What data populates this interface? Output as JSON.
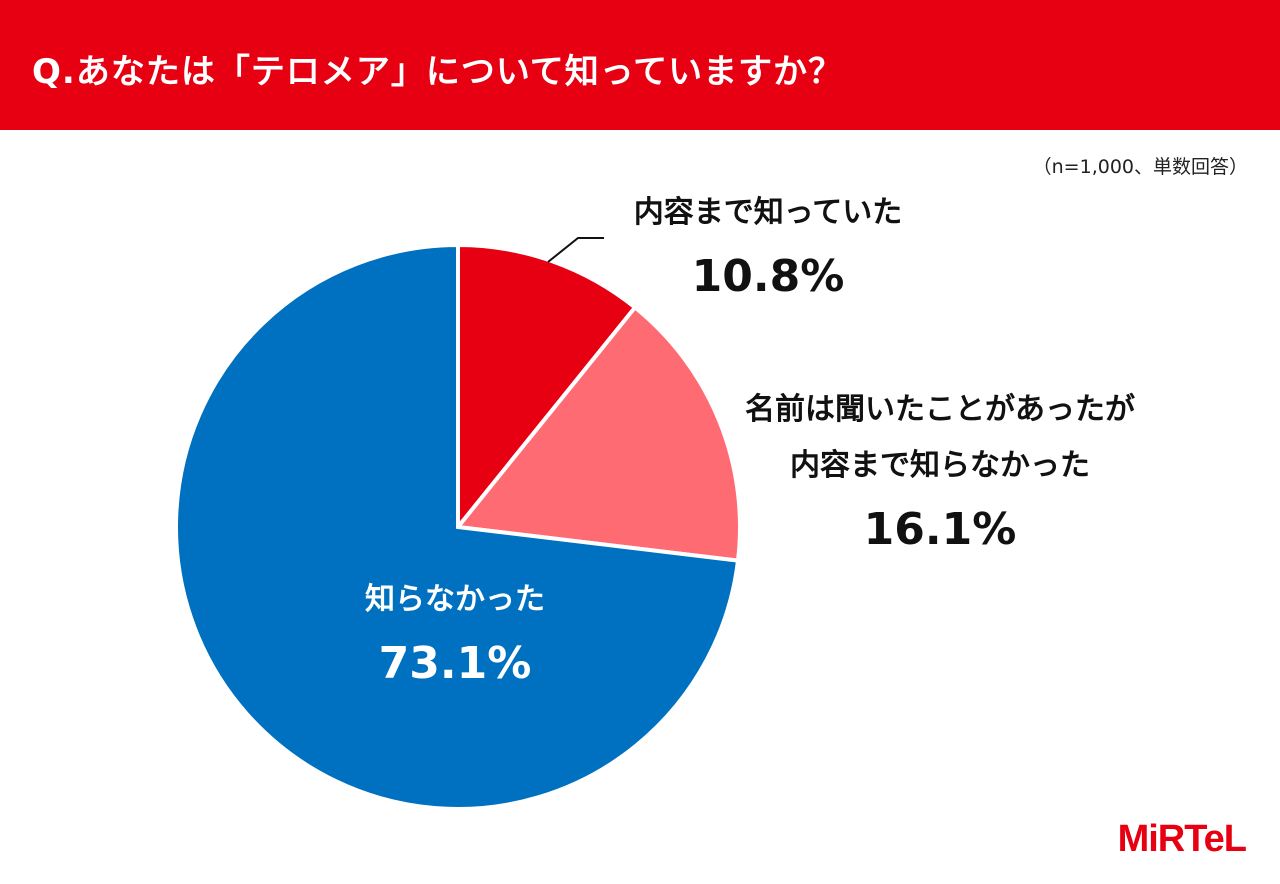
{
  "title": "Q.あなたは「テロメア」について知っていますか？",
  "note": "（n=1,000、単数回答）",
  "logo": "MiRTeL",
  "chart_data": {
    "type": "pie",
    "slices": [
      {
        "label": "内容まで知っていた",
        "value": 10.8,
        "value_label": "10.8%",
        "color": "#e60012"
      },
      {
        "label_lines": [
          "名前は聞いたことがあったが",
          "内容まで知らなかった"
        ],
        "value": 16.1,
        "value_label": "16.1%",
        "color": "#ff6b73"
      },
      {
        "label": "知らなかった",
        "value": 73.1,
        "value_label": "73.1%",
        "color": "#0070c0"
      }
    ]
  }
}
